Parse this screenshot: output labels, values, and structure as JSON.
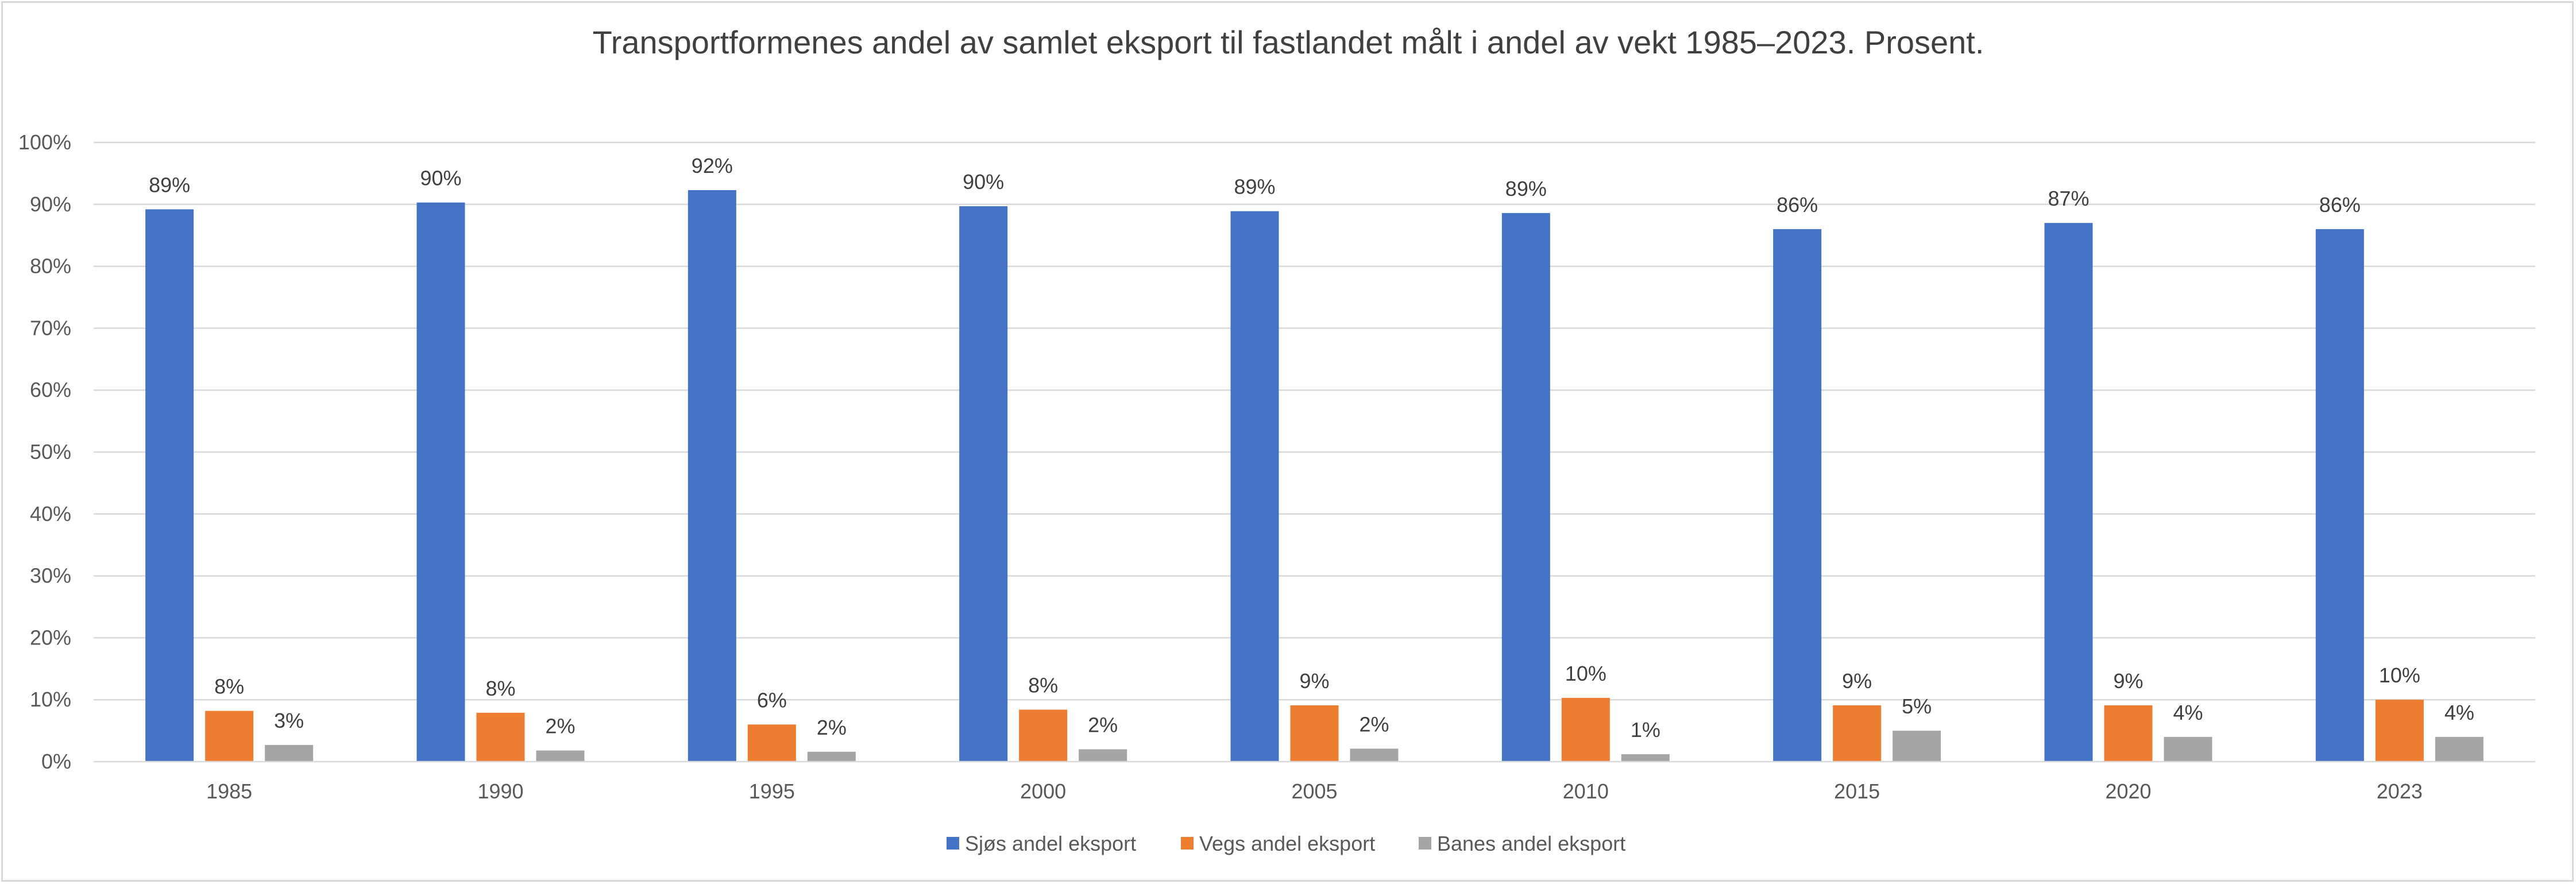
{
  "chart_data": {
    "type": "bar",
    "title": "Transportformenes andel av samlet eksport til fastlandet målt i andel av vekt 1985–2023. Prosent.",
    "xlabel": "",
    "ylabel": "",
    "categories": [
      "1985",
      "1990",
      "1995",
      "2000",
      "2005",
      "2010",
      "2015",
      "2020",
      "2023"
    ],
    "ylim": [
      0,
      100
    ],
    "yticks": [
      "0%",
      "10%",
      "20%",
      "30%",
      "40%",
      "50%",
      "60%",
      "70%",
      "80%",
      "90%",
      "100%"
    ],
    "grid": true,
    "legend_position": "bottom",
    "series": [
      {
        "name": "Sjøs andel eksport",
        "color": "#4472c4",
        "values": [
          89.2,
          90.3,
          92.3,
          89.7,
          88.9,
          88.6,
          86.0,
          87.0,
          86.0
        ],
        "labels": [
          "89%",
          "90%",
          "92%",
          "90%",
          "89%",
          "89%",
          "86%",
          "87%",
          "86%"
        ]
      },
      {
        "name": "Vegs andel eksport",
        "color": "#ed7d31",
        "values": [
          8.2,
          7.9,
          6.0,
          8.4,
          9.1,
          10.3,
          9.1,
          9.1,
          10.0
        ],
        "labels": [
          "8%",
          "8%",
          "6%",
          "8%",
          "9%",
          "10%",
          "9%",
          "9%",
          "10%"
        ]
      },
      {
        "name": "Banes andel eksport",
        "color": "#a5a5a5",
        "values": [
          2.7,
          1.8,
          1.6,
          2.0,
          2.1,
          1.2,
          5.0,
          4.0,
          4.0
        ],
        "labels": [
          "3%",
          "2%",
          "2%",
          "2%",
          "2%",
          "1%",
          "5%",
          "4%",
          "4%"
        ]
      }
    ]
  }
}
